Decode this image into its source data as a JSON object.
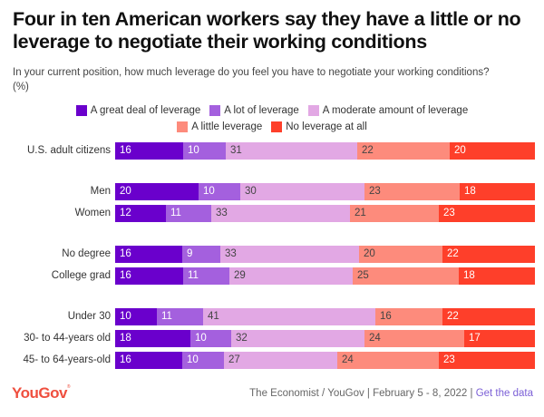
{
  "title": "Four in ten American workers say they have a little or no leverage to negotiate their working conditions",
  "subtitle_line1": "In your current position, how much leverage do you feel you have to negotiate your working conditions?",
  "subtitle_line2": "(%)",
  "footer": {
    "logo": "YouGov",
    "source": "The Economist / YouGov | February 5 - 8, 2022 |",
    "link": "Get the data"
  },
  "chart_data": {
    "type": "bar",
    "orientation": "horizontal",
    "stacked": true,
    "title": "Four in ten American workers say they have a little or no leverage to negotiate their working conditions",
    "subtitle": "In your current position, how much leverage do you feel you have to negotiate your working conditions? (%)",
    "xlabel": "",
    "ylabel": "",
    "legend_position": "top-center",
    "grid": false,
    "categories": [
      "U.S. adult citizens",
      "Men",
      "Women",
      "No degree",
      "College grad",
      "Under 30",
      "30- to 44-years old",
      "45- to 64-years-old"
    ],
    "groups": [
      [
        0
      ],
      [
        1,
        2
      ],
      [
        3,
        4
      ],
      [
        5,
        6,
        7
      ]
    ],
    "series": [
      {
        "name": "A great deal of leverage",
        "color": "#6a00cc",
        "text_color": "#ffffff",
        "values": [
          16,
          20,
          12,
          16,
          16,
          10,
          18,
          16
        ]
      },
      {
        "name": "A lot of leverage",
        "color": "#a460de",
        "text_color": "#ffffff",
        "values": [
          10,
          10,
          11,
          9,
          11,
          11,
          10,
          10
        ]
      },
      {
        "name": "A moderate amount of leverage",
        "color": "#e2a8e4",
        "text_color": "#444444",
        "values": [
          31,
          30,
          33,
          33,
          29,
          41,
          32,
          27
        ]
      },
      {
        "name": "A little leverage",
        "color": "#fd8b7c",
        "text_color": "#444444",
        "values": [
          22,
          23,
          21,
          20,
          25,
          16,
          24,
          24
        ]
      },
      {
        "name": "No leverage at all",
        "color": "#fe3f2a",
        "text_color": "#ffffff",
        "values": [
          20,
          18,
          23,
          22,
          18,
          22,
          17,
          23
        ]
      }
    ]
  }
}
